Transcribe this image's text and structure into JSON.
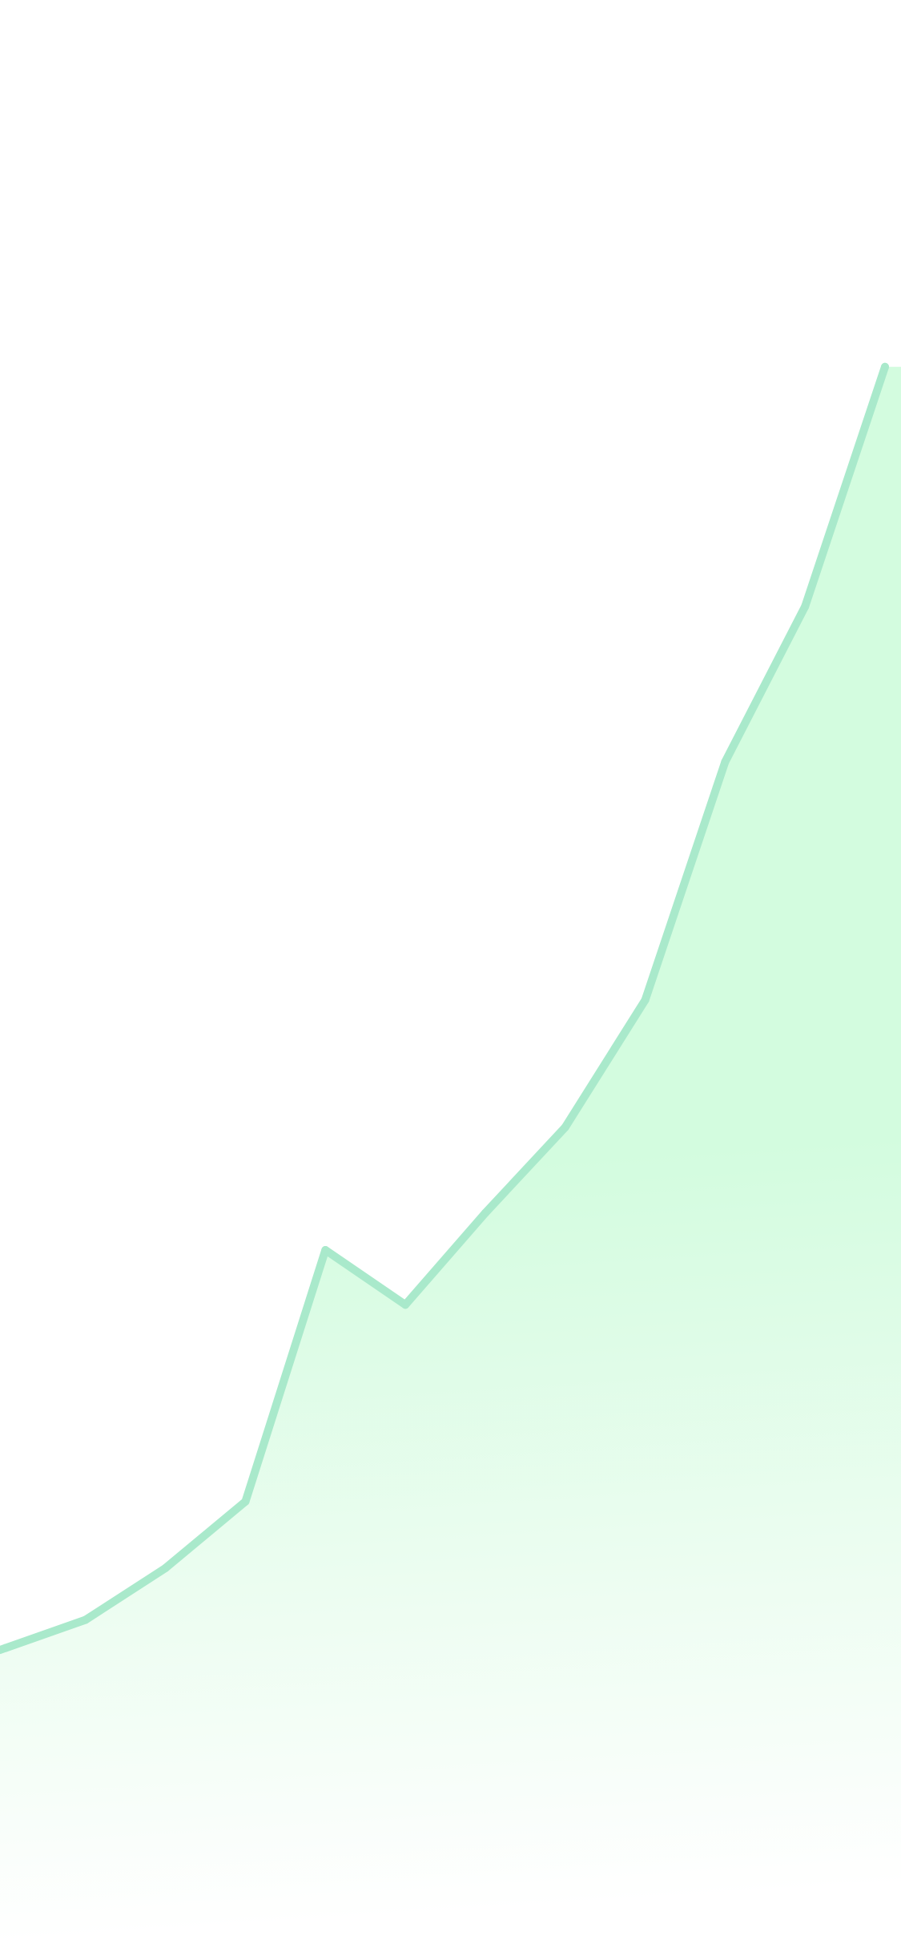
{
  "chart_data": {
    "type": "area",
    "title": "",
    "xlabel": "",
    "ylabel": "",
    "grid": false,
    "legend": "none",
    "x": [
      0,
      1,
      2,
      3,
      4,
      5,
      6,
      7,
      8,
      9,
      10,
      11
    ],
    "series": [
      {
        "values": [
          18.6,
          20.5,
          24.0,
          28.5,
          45.5,
          41.8,
          48.0,
          53.8,
          62.4,
          78.5,
          89.0,
          105.2
        ],
        "line_color": "#a9e9cb",
        "fill_color": "#c8fad8"
      }
    ],
    "xlim": [
      -0.07,
      11.2
    ],
    "ylim": [
      0,
      130
    ]
  }
}
